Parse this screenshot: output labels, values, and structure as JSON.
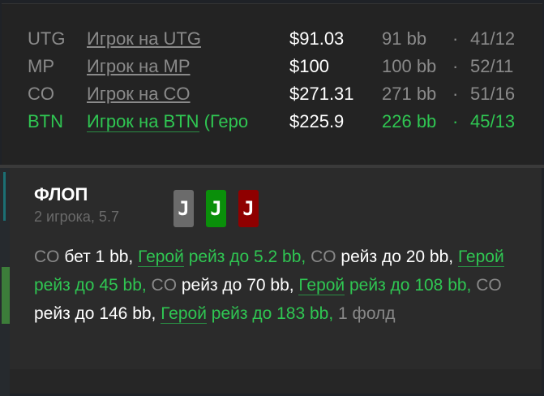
{
  "players": [
    {
      "pos": "UTG",
      "name": "Игрок на UTG",
      "stack": "$91.03",
      "bb": "91 bb",
      "sep": "·",
      "stat": "41/12",
      "hero": false
    },
    {
      "pos": "MP",
      "name": "Игрок на MP",
      "stack": "$100",
      "bb": "100 bb",
      "sep": "·",
      "stat": "52/11",
      "hero": false
    },
    {
      "pos": "CO",
      "name": "Игрок на CO",
      "stack": "$271.31",
      "bb": "271 bb",
      "sep": "·",
      "stat": "51/16",
      "hero": false
    },
    {
      "pos": "BTN",
      "name": "Игрок на BTN",
      "name_suffix": " (Геро",
      "stack": "$225.9",
      "bb": "226 bb",
      "sep": "·",
      "stat": "45/13",
      "hero": true
    }
  ],
  "street": {
    "title": "ФЛОП",
    "subtitle": "2 игрока, 5.7",
    "cards": [
      {
        "rank": "J",
        "color": "#6b6b6b"
      },
      {
        "rank": "J",
        "color": "#0a8f0a"
      },
      {
        "rank": "J",
        "color": "#8f0000"
      }
    ],
    "actions": [
      {
        "t": "pos",
        "text": "CO"
      },
      {
        "t": "act",
        "text": " бет 1 bb, "
      },
      {
        "t": "hero-name",
        "text": "Герой"
      },
      {
        "t": "hero",
        "text": " рейз до 5.2 bb, "
      },
      {
        "t": "pos",
        "text": "CO"
      },
      {
        "t": "act",
        "text": " рейз до 20 bb, "
      },
      {
        "t": "hero-name",
        "text": "Герой"
      },
      {
        "t": "hero",
        "text": " рейз до 45 bb, "
      },
      {
        "t": "pos",
        "text": "CO"
      },
      {
        "t": "act",
        "text": " рейз до 70 bb, "
      },
      {
        "t": "hero-name",
        "text": "Герой"
      },
      {
        "t": "hero",
        "text": " рейз до 108 bb, "
      },
      {
        "t": "pos",
        "text": "CO"
      },
      {
        "t": "act",
        "text": " рейз до 146 bb, "
      },
      {
        "t": "hero-name",
        "text": "Герой"
      },
      {
        "t": "hero",
        "text": " рейз до 183 bb, "
      },
      {
        "t": "fold",
        "text": "1 фолд"
      }
    ]
  },
  "colors": {
    "hero": "#2fc652",
    "background": "#2b2b2b"
  }
}
